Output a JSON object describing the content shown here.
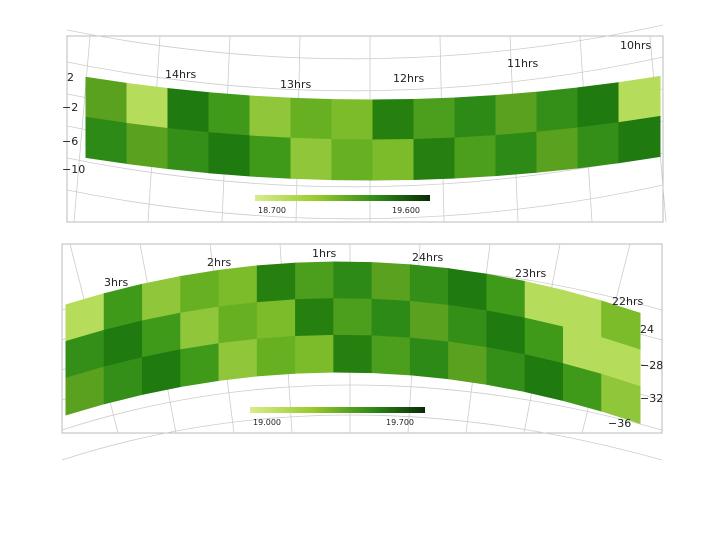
{
  "panels": [
    {
      "hour_labels": [
        "14hrs",
        "13hrs",
        "12hrs",
        "11hrs",
        "10hrs"
      ],
      "dec_labels": [
        "2",
        "−2",
        "−6",
        "−10"
      ],
      "colorbar_labels": [
        "18.700",
        "19.600"
      ]
    },
    {
      "hour_labels": [
        "3hrs",
        "2hrs",
        "1hrs",
        "24hrs",
        "23hrs",
        "22hrs"
      ],
      "dec_labels": [
        "24",
        "−28",
        "−32",
        "−36"
      ],
      "colorbar_labels": [
        "19.000",
        "19.700"
      ]
    }
  ]
}
